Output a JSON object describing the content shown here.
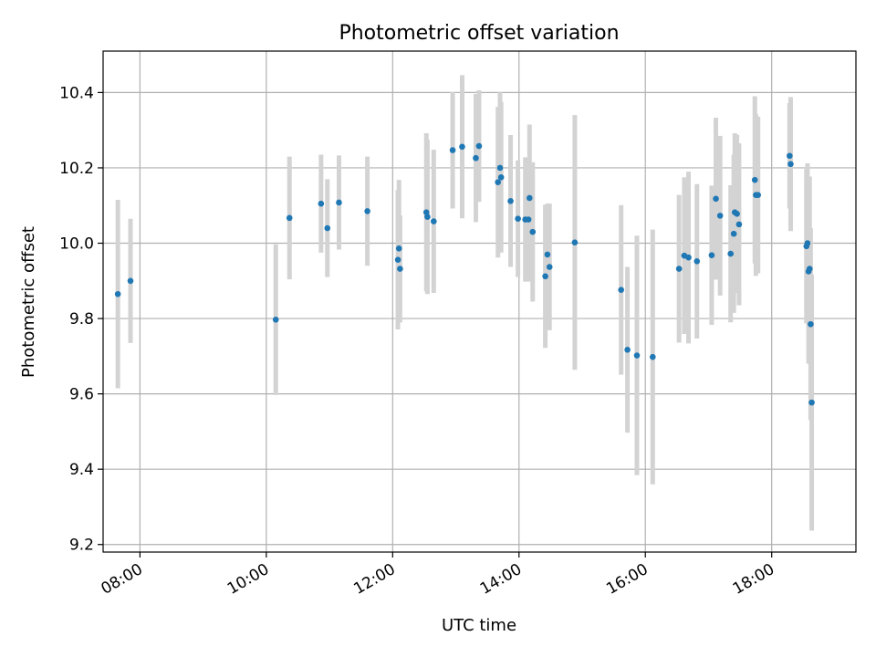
{
  "chart_data": {
    "type": "scatter",
    "title": "Photometric offset variation",
    "xlabel": "UTC time",
    "ylabel": "Photometric offset",
    "x_type": "time",
    "xlim": [
      "07:25",
      "19:20"
    ],
    "ylim": [
      9.18,
      10.51
    ],
    "x_ticks": [
      "08:00",
      "10:00",
      "12:00",
      "14:00",
      "16:00",
      "18:00"
    ],
    "y_ticks": [
      "9.2",
      "9.4",
      "9.6",
      "9.8",
      "10.0",
      "10.2",
      "10.4"
    ],
    "grid": true,
    "colors": {
      "point": "#1f77b4",
      "errorbar": "#d3d3d3",
      "grid": "#b0b0b0"
    },
    "series": [
      {
        "x": [
          "07:39",
          "07:51",
          "10:09",
          "10:22",
          "10:52",
          "10:58",
          "11:09",
          "11:36",
          "12:05",
          "12:06",
          "12:07",
          "12:32",
          "12:33",
          "12:39",
          "12:57",
          "13:06",
          "13:19",
          "13:22",
          "13:40",
          "13:42",
          "13:43",
          "13:52",
          "13:59",
          "14:06",
          "14:09",
          "14:10",
          "14:13",
          "14:25",
          "14:27",
          "14:29",
          "14:53",
          "15:37",
          "15:43",
          "15:52",
          "16:07",
          "16:32",
          "16:37",
          "16:41",
          "16:49",
          "17:03",
          "17:07",
          "17:11",
          "17:21",
          "17:24",
          "17:25",
          "17:27",
          "17:29",
          "17:44",
          "17:45",
          "17:47",
          "18:17",
          "18:18",
          "18:33",
          "18:34",
          "18:35",
          "18:36",
          "18:37",
          "18:38"
        ],
        "y": [
          9.865,
          9.9,
          9.797,
          10.067,
          10.105,
          10.04,
          10.108,
          10.085,
          9.956,
          9.986,
          9.932,
          10.082,
          10.07,
          10.058,
          10.247,
          10.256,
          10.226,
          10.258,
          10.162,
          10.2,
          10.175,
          10.112,
          10.065,
          10.063,
          10.063,
          10.12,
          10.03,
          9.912,
          9.97,
          9.937,
          10.002,
          9.876,
          9.717,
          9.702,
          9.698,
          9.932,
          9.967,
          9.962,
          9.952,
          9.968,
          10.118,
          10.073,
          9.972,
          10.025,
          10.082,
          10.078,
          10.05,
          10.168,
          10.128,
          10.128,
          10.232,
          10.21,
          9.992,
          10.0,
          9.925,
          9.932,
          9.785,
          9.577
        ],
        "yerr": [
          0.25,
          0.165,
          0.2,
          0.163,
          0.13,
          0.13,
          0.125,
          0.145,
          0.185,
          0.182,
          0.142,
          0.21,
          0.205,
          0.19,
          0.155,
          0.19,
          0.17,
          0.148,
          0.2,
          0.2,
          0.2,
          0.175,
          0.155,
          0.165,
          0.165,
          0.195,
          0.185,
          0.19,
          0.135,
          0.168,
          0.338,
          0.225,
          0.22,
          0.318,
          0.338,
          0.196,
          0.208,
          0.228,
          0.205,
          0.185,
          0.215,
          0.212,
          0.182,
          0.21,
          0.21,
          0.21,
          0.215,
          0.222,
          0.215,
          0.208,
          0.14,
          0.178,
          0.205,
          0.212,
          0.245,
          0.245,
          0.255,
          0.34
        ]
      }
    ]
  }
}
